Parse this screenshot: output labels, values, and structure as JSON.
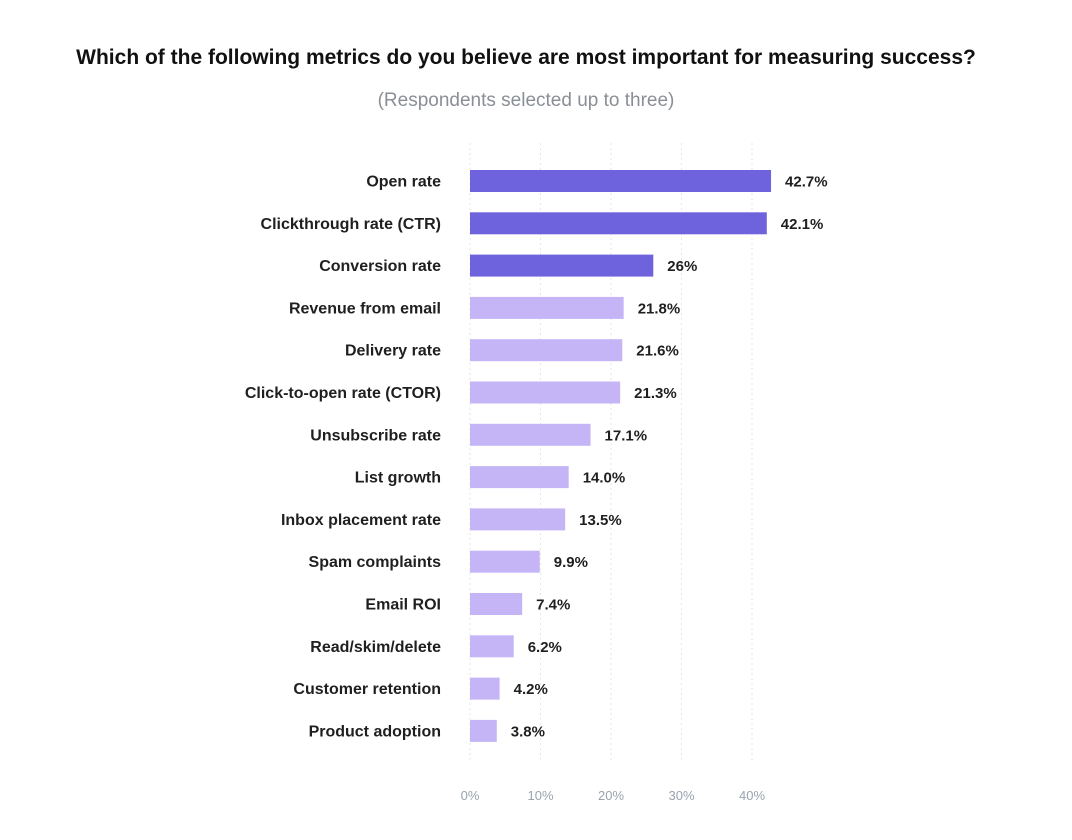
{
  "chart_data": {
    "type": "bar",
    "orientation": "horizontal",
    "title": "Which of the following metrics do you believe are most important for measuring success?",
    "subtitle": "(Respondents selected up to three)",
    "categories": [
      "Open rate",
      "Clickthrough rate (CTR)",
      "Conversion rate",
      "Revenue from email",
      "Delivery rate",
      "Click-to-open rate (CTOR)",
      "Unsubscribe rate",
      "List growth",
      "Inbox placement rate",
      "Spam complaints",
      "Email ROI",
      "Read/skim/delete",
      "Customer retention",
      "Product adoption"
    ],
    "values": [
      42.7,
      42.1,
      26,
      21.8,
      21.6,
      21.3,
      17.1,
      14.0,
      13.5,
      9.9,
      7.4,
      6.2,
      4.2,
      3.8
    ],
    "value_labels": [
      "42.7%",
      "42.1%",
      "26%",
      "21.8%",
      "21.6%",
      "21.3%",
      "17.1%",
      "14.0%",
      "13.5%",
      "9.9%",
      "7.4%",
      "6.2%",
      "4.2%",
      "3.8%"
    ],
    "xticks": [
      "0%",
      "10%",
      "20%",
      "30%",
      "40%"
    ],
    "xlim": [
      0,
      45
    ],
    "xlabel": "",
    "ylabel": "",
    "grid": true,
    "highlight_count": 3,
    "colors": {
      "highlight": "#6f63dd",
      "normal": "#c5b5f7",
      "grid": "#e3e6ea"
    }
  }
}
